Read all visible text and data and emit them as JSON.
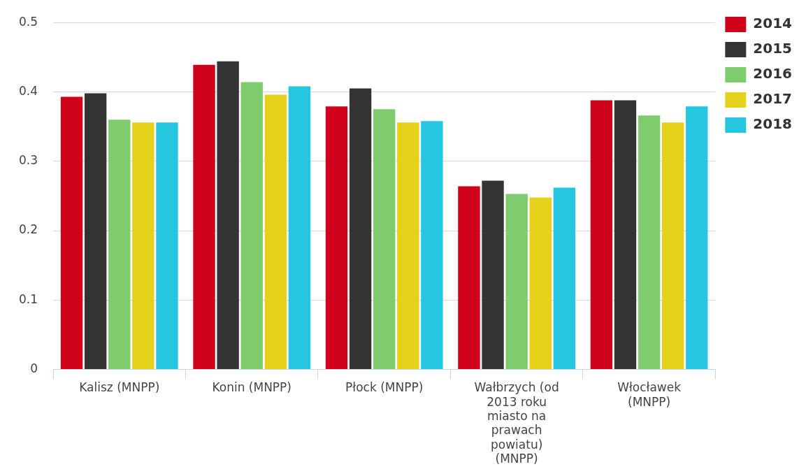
{
  "chart_data": {
    "type": "bar",
    "categories": [
      "Kalisz (MNPP)",
      "Konin (MNPP)",
      "Płock (MNPP)",
      "Wałbrzych (od 2013 roku miasto na prawach powiatu) (MNPP)",
      "Włocławek (MNPP)"
    ],
    "series": [
      {
        "name": "2014",
        "color": "#d0021b",
        "values": [
          0.393,
          0.439,
          0.379,
          0.264,
          0.388
        ]
      },
      {
        "name": "2015",
        "color": "#333333",
        "values": [
          0.398,
          0.444,
          0.405,
          0.272,
          0.388
        ]
      },
      {
        "name": "2016",
        "color": "#7fcc6e",
        "values": [
          0.36,
          0.414,
          0.375,
          0.253,
          0.366
        ]
      },
      {
        "name": "2017",
        "color": "#e5d11a",
        "values": [
          0.356,
          0.396,
          0.356,
          0.248,
          0.356
        ]
      },
      {
        "name": "2018",
        "color": "#26c6e0",
        "values": [
          0.356,
          0.408,
          0.358,
          0.262,
          0.379
        ]
      }
    ],
    "ylim": [
      0,
      0.5
    ],
    "yticks": [
      0,
      0.1,
      0.2,
      0.3,
      0.4,
      0.5
    ],
    "grid": "y",
    "legend": "top right"
  }
}
